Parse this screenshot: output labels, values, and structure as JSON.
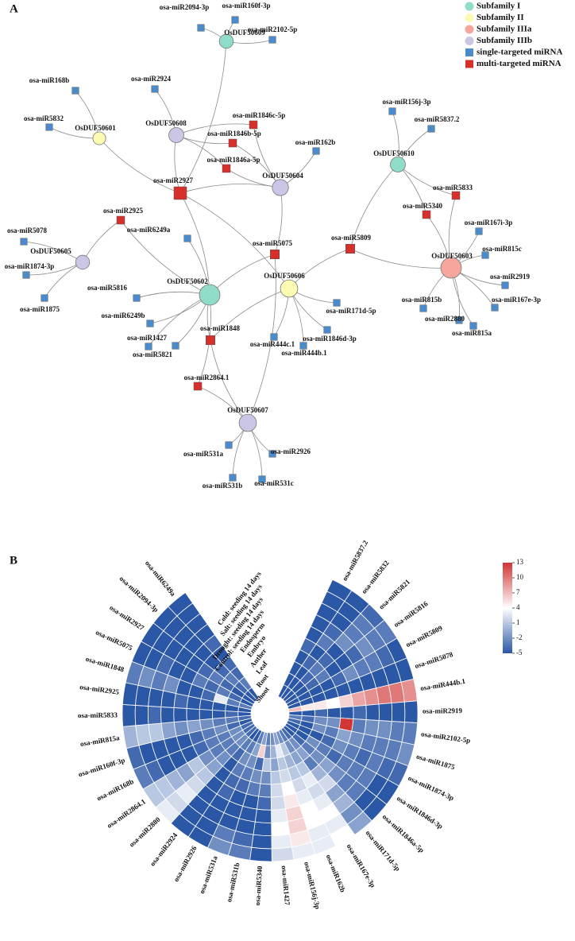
{
  "panel_a": {
    "label": "A",
    "groups": [
      {
        "name": "Subfamily I",
        "color": "#8fdcc9",
        "nodes": [
          {
            "label": "OsDUF50609",
            "targets": [
              "osa-miR2094-3p",
              "osa-miR160f-3p",
              "osa-miR2102-5p",
              "osa-miR2927"
            ]
          },
          {
            "label": "OsDUF50610",
            "targets": [
              "osa-miR156j-3p",
              "osa-miR5837.2",
              "osa-miR5833",
              "osa-miR5340",
              "osa-miR5809"
            ]
          },
          {
            "label": "OsDUF50602",
            "targets": [
              "osa-miR5816",
              "osa-miR6249b",
              "osa-miR1427",
              "osa-miR5821",
              "osa-miR6249a",
              "osa-miR2925",
              "osa-miR2927",
              "osa-miR5075",
              "osa-miR1848",
              "osa-miR2864.1"
            ]
          }
        ]
      },
      {
        "name": "Subfamily II",
        "color": "#fdfbb3",
        "nodes": [
          {
            "label": "OsDUF50601",
            "targets": [
              "osa-miR168b",
              "osa-miR5832",
              "osa-miR2927"
            ]
          },
          {
            "label": "OsDUF50606",
            "targets": [
              "osa-miR171d-5p",
              "osa-miR444c.1",
              "osa-miR1846d-3p",
              "osa-miR444b.1",
              "osa-miR2927",
              "osa-miR5809",
              "osa-miR1848"
            ]
          }
        ]
      },
      {
        "name": "Subfamily IIIa",
        "color": "#f6a69c",
        "nodes": [
          {
            "label": "OsDUF50603",
            "targets": [
              "osa-miR167i-3p",
              "osa-miR815c",
              "osa-miR2919",
              "osa-miR167e-3p",
              "osa-miR815b",
              "osa-miR2880",
              "osa-miR815a",
              "osa-miR5833",
              "osa-miR5340",
              "osa-miR5809"
            ]
          }
        ]
      },
      {
        "name": "Subfamily IIIb",
        "color": "#cbc6e6",
        "nodes": [
          {
            "label": "OsDUF50608",
            "targets": [
              "osa-miR2924",
              "osa-miR1846c-5p",
              "osa-miR1846b-5p",
              "osa-miR1846a-5p",
              "osa-miR2927"
            ]
          },
          {
            "label": "OsDUF50604",
            "targets": [
              "osa-miR162b",
              "osa-miR1846c-5p",
              "osa-miR1846b-5p",
              "osa-miR1846a-5p",
              "osa-miR2927",
              "osa-miR5075"
            ]
          },
          {
            "label": "OsDUF50605",
            "targets": [
              "osa-miR5078",
              "osa-miR1874-3p",
              "osa-miR1875",
              "osa-miR2925"
            ]
          },
          {
            "label": "OsDUF50607",
            "targets": [
              "osa-miR2926",
              "osa-miR531a",
              "osa-miR531b",
              "osa-miR531c",
              "osa-miR5075",
              "osa-miR1848",
              "osa-miR2864.1"
            ]
          }
        ]
      },
      {
        "name": "single-targeted miRNA",
        "color": "#4a8ccb",
        "nodes": [
          {
            "label": "osa-miR2094-3p"
          },
          {
            "label": "osa-miR160f-3p"
          },
          {
            "label": "osa-miR2102-5p"
          },
          {
            "label": "osa-miR168b"
          },
          {
            "label": "osa-miR2924"
          },
          {
            "label": "osa-miR5832"
          },
          {
            "label": "osa-miR162b"
          },
          {
            "label": "osa-miR156j-3p"
          },
          {
            "label": "osa-miR5837.2"
          },
          {
            "label": "osa-miR5078"
          },
          {
            "label": "osa-miR1874-3p"
          },
          {
            "label": "osa-miR1875"
          },
          {
            "label": "osa-miR6249a"
          },
          {
            "label": "osa-miR5816"
          },
          {
            "label": "osa-miR6249b"
          },
          {
            "label": "osa-miR1427"
          },
          {
            "label": "osa-miR5821"
          },
          {
            "label": "osa-miR171d-5p"
          },
          {
            "label": "osa-miR444c.1"
          },
          {
            "label": "osa-miR1846d-3p"
          },
          {
            "label": "osa-miR444b.1"
          },
          {
            "label": "osa-miR167i-3p"
          },
          {
            "label": "osa-miR815c"
          },
          {
            "label": "osa-miR2919"
          },
          {
            "label": "osa-miR167e-3p"
          },
          {
            "label": "osa-miR815b"
          },
          {
            "label": "osa-miR2880"
          },
          {
            "label": "osa-miR815a"
          },
          {
            "label": "osa-miR2926"
          },
          {
            "label": "osa-miR531a"
          },
          {
            "label": "osa-miR531b"
          },
          {
            "label": "osa-miR531c"
          }
        ]
      },
      {
        "name": "multi-targeted miRNA",
        "color": "#d7302b",
        "nodes": [
          {
            "label": "osa-miR1846c-5p"
          },
          {
            "label": "osa-miR1846b-5p"
          },
          {
            "label": "osa-miR1846a-5p"
          },
          {
            "label": "osa-miR2927"
          },
          {
            "label": "osa-miR2925"
          },
          {
            "label": "osa-miR5075"
          },
          {
            "label": "osa-miR5809"
          },
          {
            "label": "osa-miR5833"
          },
          {
            "label": "osa-miR5340"
          },
          {
            "label": "osa-miR1848"
          },
          {
            "label": "osa-miR2864.1"
          }
        ]
      }
    ]
  },
  "chart_data": {
    "type": "circular-heatmap",
    "panel_label": "B",
    "rows": [
      "Cold: seeding 14 days",
      "Salt: seeding 14 days",
      "Drought: seeding 14 days",
      "Control: seeding 14 days",
      "Endosperm",
      "Embryo",
      "Anther",
      "Leaf",
      "Root",
      "Shoot"
    ],
    "columns": [
      "osa-miR5837.2",
      "osa-miR5832",
      "osa-miR5821",
      "osa-miR5816",
      "osa-miR5809",
      "osa-miR5078",
      "osa-miR444b.1",
      "osa-miR2919",
      "osa-miR2102-5p",
      "osa-miR1875",
      "osa-miR1874-3p",
      "osa-miR1846d-3p",
      "osa-miR1846a-5p",
      "osa-miR171d-5p",
      "osa-miR167e-3p",
      "osa-miR162b",
      "osa-miR156j-3p",
      "osa-miR1427",
      "osa-miR5340",
      "osa-miR531b",
      "osa-miR531a",
      "osa-miR2926",
      "osa-miR2924",
      "osa-miR2880",
      "osa-miR2864.1",
      "osa-miR168b",
      "osa-miR160f-3p",
      "osa-miR815a",
      "osa-miR5833",
      "osa-miR2925",
      "osa-miR1848",
      "osa-miR5075",
      "osa-miR2927",
      "osa-miR2094-3p",
      "osa-miR6249a"
    ],
    "values": [
      [
        -5,
        -5,
        -5,
        -5,
        -5,
        -4,
        -5,
        -5,
        -5,
        -5
      ],
      [
        -5,
        -5,
        -5,
        -4,
        -3,
        -5,
        -4,
        -5,
        -5,
        -5
      ],
      [
        -4,
        -3,
        -3,
        -2,
        -5,
        -4,
        -3,
        -4,
        -5,
        -5
      ],
      [
        -3,
        -3,
        -2,
        -4,
        -5,
        -5,
        -3,
        -4,
        -5,
        -5
      ],
      [
        -5,
        -4,
        -3,
        -3,
        -2,
        -4,
        -5,
        -5,
        -5,
        -5
      ],
      [
        -5,
        -5,
        -5,
        -5,
        -5,
        -5,
        -5,
        -5,
        -5,
        -5
      ],
      [
        9,
        10,
        10,
        9,
        8,
        6,
        4,
        5,
        5,
        7
      ],
      [
        -5,
        -5,
        -5,
        -5,
        -4,
        -5,
        -5,
        -4,
        -5,
        -5
      ],
      [
        -3,
        -3,
        -2,
        -2,
        -3,
        13,
        -2,
        -2,
        -4,
        -3
      ],
      [
        -2,
        -3,
        -3,
        -3,
        -2,
        -1,
        -3,
        -2,
        -5,
        -4
      ],
      [
        -4,
        -4,
        -3,
        -4,
        -3,
        -2,
        -4,
        -5,
        -5,
        -5
      ],
      [
        -5,
        -5,
        -3,
        -3,
        -3,
        -4,
        -3,
        -2,
        -5,
        -5
      ],
      [
        -5,
        -5,
        -3,
        -3,
        -2,
        -1,
        -2,
        -3,
        -4,
        -5
      ],
      [
        -1,
        -2,
        0,
        -1,
        2,
        0,
        -3,
        -1,
        -2,
        -4
      ],
      [
        4,
        3,
        4,
        3,
        2,
        3,
        1,
        -1,
        -2,
        -3
      ],
      [
        3,
        3,
        4,
        4,
        3,
        2,
        1,
        0,
        1,
        -2
      ],
      [
        3,
        5,
        6,
        6,
        5,
        4,
        2,
        1,
        3,
        -1
      ],
      [
        2,
        3,
        4,
        3,
        2,
        2,
        1,
        -1,
        0,
        -2
      ],
      [
        -5,
        -5,
        -5,
        -5,
        -4,
        -3,
        -2,
        1,
        -2,
        -3
      ],
      [
        -3,
        -4,
        -5,
        -5,
        -5,
        -3,
        -2,
        -4,
        6,
        -1
      ],
      [
        -2,
        -3,
        -5,
        -5,
        -5,
        -4,
        -3,
        -2,
        -1,
        -3
      ],
      [
        -5,
        -5,
        -5,
        -5,
        -4,
        -4,
        -3,
        -2,
        -3,
        -5
      ],
      [
        -5,
        -5,
        -5,
        -5,
        -5,
        -5,
        -5,
        -4,
        -3,
        -5
      ],
      [
        3,
        2,
        3,
        2,
        1,
        -1,
        -2,
        -3,
        -2,
        -4
      ],
      [
        1,
        1,
        0,
        -1,
        1,
        -2,
        -3,
        -3,
        -2,
        -4
      ],
      [
        -3,
        -4,
        -5,
        -5,
        -5,
        -4,
        -3,
        -3,
        -2,
        -4
      ],
      [
        -4,
        -5,
        -5,
        -5,
        -5,
        -4,
        -3,
        -2,
        -4,
        -5
      ],
      [
        0,
        1,
        1,
        -1,
        -2,
        -1,
        -2,
        -3,
        -3,
        -4
      ],
      [
        -5,
        -5,
        -4,
        -5,
        -5,
        -5,
        -5,
        -5,
        -4,
        -5
      ],
      [
        -5,
        -5,
        -5,
        -5,
        -4,
        -5,
        -5,
        -5,
        -5,
        -5
      ],
      [
        -3,
        -2,
        -3,
        -2,
        -5,
        -5,
        -4,
        3,
        -3,
        -3
      ],
      [
        -5,
        -5,
        -4,
        -5,
        -5,
        -3,
        -4,
        -3,
        -4,
        -5
      ],
      [
        -5,
        -5,
        -5,
        -5,
        -5,
        -4,
        -3,
        -4,
        -5,
        -5
      ],
      [
        -5,
        -5,
        -5,
        -5,
        -5,
        -5,
        -4,
        -3,
        -4,
        -5
      ],
      [
        -5,
        -5,
        -5,
        -5,
        -4,
        -5,
        -4,
        -4,
        -3,
        -5
      ]
    ],
    "clim": [
      -5,
      13
    ],
    "colors": [
      "#2b57a7",
      "#ffffff",
      "#d13535"
    ],
    "colorbar_ticks": [
      13,
      10,
      7,
      4,
      1,
      -2,
      -5
    ]
  }
}
